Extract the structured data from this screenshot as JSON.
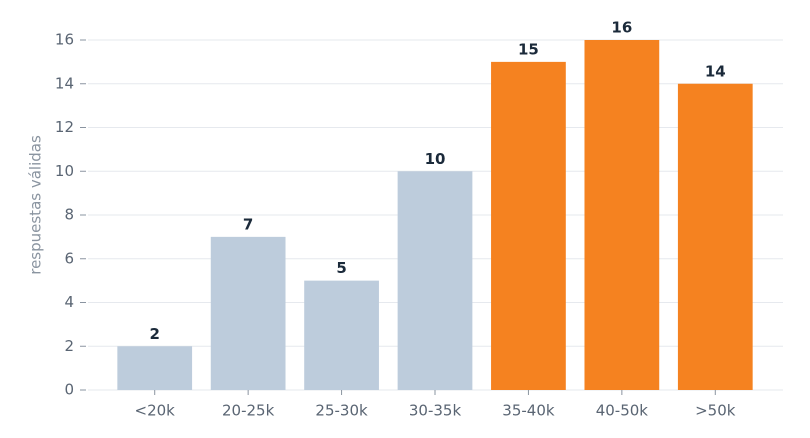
{
  "chart_data": {
    "type": "bar",
    "y_label": "respuestas válidas",
    "categories": [
      "<20k",
      "20-25k",
      "25-30k",
      "30-35k",
      "35-40k",
      "40-50k",
      ">50k"
    ],
    "values": [
      2,
      7,
      5,
      10,
      15,
      16,
      14
    ],
    "colors": [
      "#bdccdc",
      "#bdccdc",
      "#bdccdc",
      "#bdccdc",
      "#f58220",
      "#f58220",
      "#f58220"
    ],
    "ylim": [
      0,
      16
    ],
    "yticks": [
      0,
      2,
      4,
      6,
      8,
      10,
      12,
      14,
      16
    ],
    "grid": true
  }
}
